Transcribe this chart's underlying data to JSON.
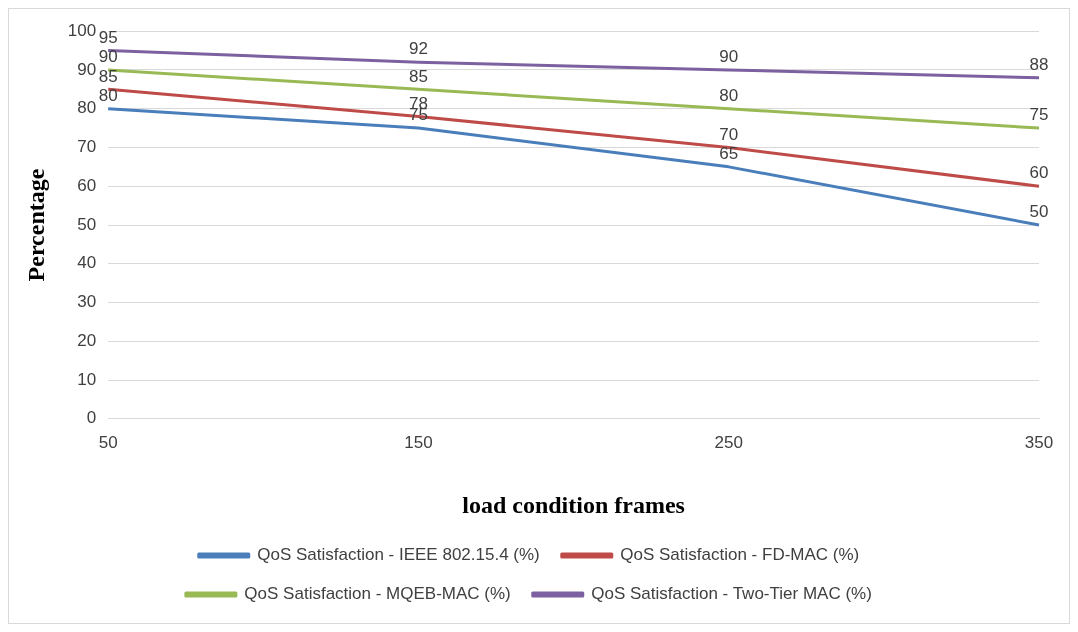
{
  "chart_data": {
    "type": "line",
    "xlabel": "load condition frames",
    "ylabel": "Percentage",
    "categories": [
      "50",
      "150",
      "250",
      "350"
    ],
    "series": [
      {
        "name": "QoS Satisfaction - IEEE 802.15.4 (%)",
        "color": "#4a7ebb",
        "values": [
          80,
          75,
          65,
          50
        ]
      },
      {
        "name": "QoS Satisfaction - FD-MAC (%)",
        "color": "#be4b48",
        "values": [
          85,
          78,
          70,
          60
        ]
      },
      {
        "name": "QoS Satisfaction - MQEB-MAC (%)",
        "color": "#98b954",
        "values": [
          90,
          85,
          80,
          75
        ]
      },
      {
        "name": "QoS Satisfaction - Two-Tier MAC (%)",
        "color": "#7d60a0",
        "values": [
          95,
          92,
          90,
          88
        ]
      }
    ],
    "ylim": [
      0,
      100
    ],
    "yticks": [
      0,
      10,
      20,
      30,
      40,
      50,
      60,
      70,
      80,
      90,
      100
    ],
    "grid": "y",
    "legend": "bottom",
    "marker": "none",
    "line_style": "solid",
    "data_labels": true
  }
}
